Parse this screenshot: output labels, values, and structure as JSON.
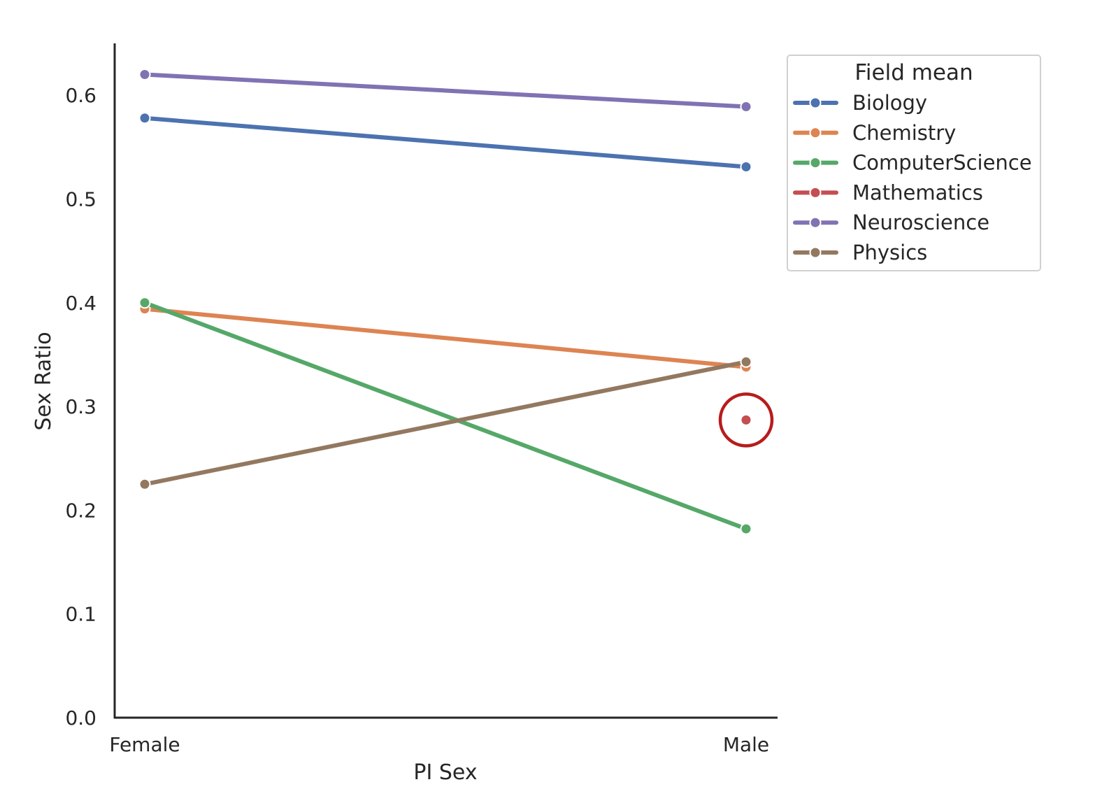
{
  "chart_data": {
    "type": "line",
    "xlabel": "PI Sex",
    "ylabel": "Sex Ratio",
    "categories": [
      "Female",
      "Male"
    ],
    "ylim": [
      0.0,
      0.65
    ],
    "yticks": [
      "0.0",
      "0.1",
      "0.2",
      "0.3",
      "0.4",
      "0.5",
      "0.6"
    ],
    "grid": false,
    "legend": {
      "title": "Field mean",
      "placement": "upper-right-outside"
    },
    "series": [
      {
        "name": "Biology",
        "color": "#4c72b0",
        "values": [
          0.578,
          0.531
        ]
      },
      {
        "name": "Chemistry",
        "color": "#dd8452",
        "values": [
          0.394,
          0.338
        ]
      },
      {
        "name": "ComputerScience",
        "color": "#55a868",
        "values": [
          0.4,
          0.182
        ]
      },
      {
        "name": "Mathematics",
        "color": "#c44e52",
        "values": [
          null,
          0.287
        ]
      },
      {
        "name": "Neuroscience",
        "color": "#8172b3",
        "values": [
          0.62,
          0.589
        ]
      },
      {
        "name": "Physics",
        "color": "#937860",
        "values": [
          0.225,
          0.343
        ]
      }
    ],
    "annotations": [
      {
        "type": "circle",
        "category": "Male",
        "value": 0.287,
        "color": "#b71c1c"
      }
    ]
  }
}
